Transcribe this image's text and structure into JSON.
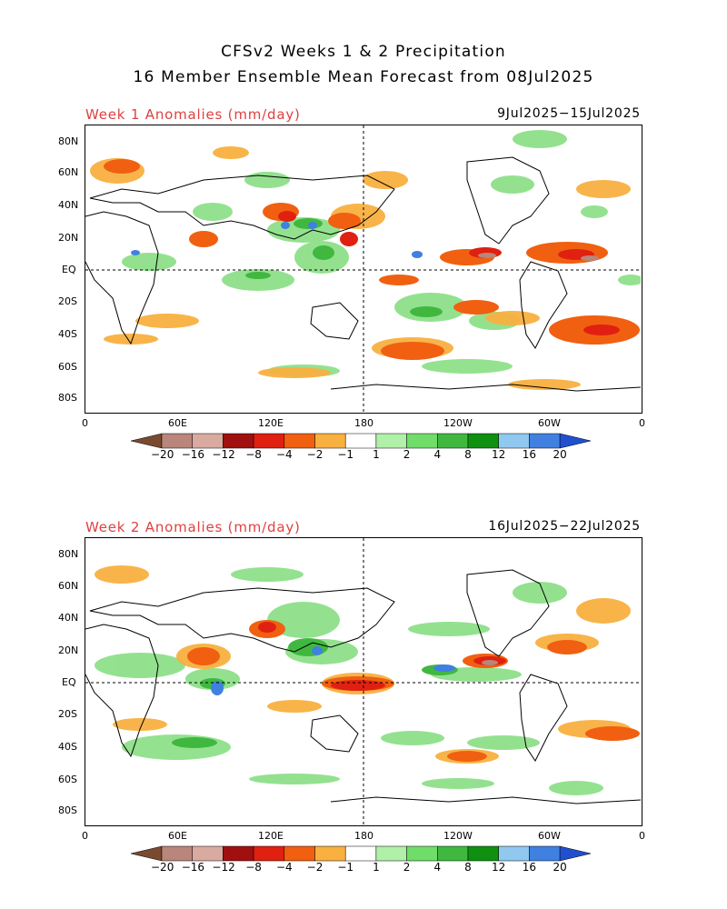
{
  "header": {
    "title_line1": "CFSv2 Weeks 1 & 2 Precipitation",
    "title_line2": "16 Member Ensemble Mean Forecast from 08Jul2025"
  },
  "panels": [
    {
      "id": "week1",
      "label": "Week 1 Anomalies (mm/day)",
      "dates": "9Jul2025−15Jul2025"
    },
    {
      "id": "week2",
      "label": "Week 2 Anomalies (mm/day)",
      "dates": "16Jul2025−22Jul2025"
    }
  ],
  "axes": {
    "lat_labels": [
      "80N",
      "60N",
      "40N",
      "20N",
      "EQ",
      "20S",
      "40S",
      "60S",
      "80S"
    ],
    "lon_labels": [
      "0",
      "60E",
      "120E",
      "180",
      "120W",
      "60W",
      "0"
    ]
  },
  "colorbar": {
    "labels": [
      "−20",
      "−16",
      "−12",
      "−8",
      "−4",
      "−2",
      "−1",
      "1",
      "2",
      "4",
      "8",
      "12",
      "16",
      "20"
    ],
    "colors": [
      "#7a4a30",
      "#b8867a",
      "#d9aaa0",
      "#a01010",
      "#e02010",
      "#f06010",
      "#f8b040",
      "#ffffff",
      "#b0f0a8",
      "#70dc6a",
      "#40b840",
      "#109010",
      "#90c8f0",
      "#4080e0",
      "#2050d0"
    ]
  }
}
